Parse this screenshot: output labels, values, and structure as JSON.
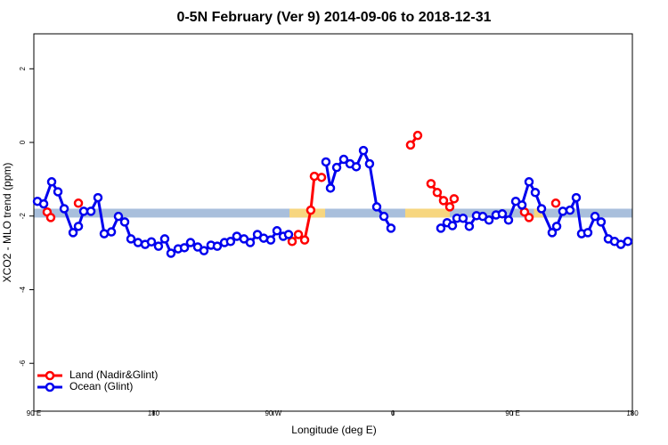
{
  "chart_data": {
    "type": "line",
    "title": "0-5N February (Ver 9)   2014-09-06 to 2018-12-31",
    "x_label": "Longitude (deg E)",
    "y_label": "XCO2 - MLO trend (ppm)",
    "xlim": [
      90,
      540
    ],
    "ylim": [
      -7.3,
      2.95
    ],
    "xticks": [
      {
        "value": 90,
        "label": "90 E"
      },
      180,
      {
        "value": 270,
        "label": "90 W"
      },
      {
        "value": 360,
        "label": "0"
      },
      {
        "value": 450,
        "label": "90 E"
      },
      {
        "value": 540,
        "label": "180"
      }
    ],
    "yticks": [
      -6,
      -4,
      -2,
      0,
      2
    ],
    "legend": "bottom-left",
    "background_band": {
      "ylim": [
        -2.04,
        -1.8
      ],
      "color": "#a9bfdc",
      "segments": [
        {
          "start": 282.2,
          "end": 309,
          "color": "#f7d67f"
        },
        {
          "start": 369.2,
          "end": 402.7,
          "color": "#f7d67f"
        },
        {
          "start": 466,
          "end": 474,
          "color": "#f7d67f"
        }
      ]
    },
    "series": [
      {
        "name": "Land (Nadir&Glint)",
        "color": "#ff0000",
        "x": [
          100.0,
          102.7,
          null,
          123.5,
          null,
          284.2,
          288.9,
          293.6,
          298.2,
          300.9,
          306.3,
          null,
          373.2,
          378.6,
          null,
          388.6,
          393.3,
          398.0,
          402.7,
          406.0,
          null,
          458.9,
          462.3,
          null,
          482.4
        ],
        "values": [
          -1.89,
          -2.04,
          null,
          -1.65,
          null,
          -2.69,
          -2.5,
          -2.65,
          -1.84,
          -0.92,
          -0.95,
          null,
          -0.07,
          0.19,
          null,
          -1.12,
          -1.36,
          -1.58,
          -1.75,
          -1.53,
          null,
          -1.89,
          -2.04,
          null,
          -1.65
        ]
      },
      {
        "name": "Ocean (Glint)",
        "color": "#0000ee",
        "x": [
          92.7,
          97.4,
          103.4,
          108.1,
          112.8,
          119.5,
          123.5,
          127.5,
          132.9,
          138.2,
          142.9,
          148.3,
          153.6,
          158.3,
          163.0,
          168.3,
          173.7,
          178.4,
          183.7,
          188.4,
          193.1,
          198.5,
          203.2,
          207.8,
          213.2,
          217.9,
          223.2,
          227.9,
          233.3,
          237.9,
          242.6,
          248.0,
          252.7,
          258.1,
          262.8,
          268.1,
          272.8,
          277.5,
          281.5,
          null,
          309.6,
          313.0,
          317.7,
          323.0,
          327.7,
          332.4,
          337.8,
          342.4,
          347.8,
          353.2,
          358.5,
          null,
          396.0,
          400.7,
          404.7,
          408.1,
          412.7,
          417.4,
          422.8,
          427.5,
          432.2,
          437.5,
          442.2,
          446.9,
          452.3,
          457.0,
          462.3,
          467.0,
          471.7,
          479.7,
          483.1,
          487.7,
          493.1,
          497.8,
          501.8,
          506.5,
          511.9,
          516.5,
          521.9,
          526.6,
          531.3,
          536.6
        ],
        "values": [
          -1.6,
          -1.67,
          -1.07,
          -1.34,
          -1.8,
          -2.45,
          -2.28,
          -1.87,
          -1.87,
          -1.5,
          -2.48,
          -2.43,
          -2.01,
          -2.16,
          -2.62,
          -2.72,
          -2.77,
          -2.7,
          -2.82,
          -2.62,
          -3.01,
          -2.89,
          -2.86,
          -2.72,
          -2.84,
          -2.94,
          -2.79,
          -2.82,
          -2.72,
          -2.69,
          -2.55,
          -2.62,
          -2.72,
          -2.5,
          -2.6,
          -2.65,
          -2.4,
          -2.55,
          -2.5,
          null,
          -0.53,
          -1.24,
          -0.68,
          -0.46,
          -0.58,
          -0.66,
          -0.22,
          -0.58,
          -1.75,
          -2.01,
          -2.33,
          null,
          -2.33,
          -2.18,
          -2.26,
          -2.06,
          -2.06,
          -2.28,
          -1.99,
          -2.01,
          -2.11,
          -1.97,
          -1.94,
          -2.11,
          -1.6,
          -1.7,
          -1.07,
          -1.36,
          -1.8,
          -2.45,
          -2.28,
          -1.87,
          -1.84,
          -1.5,
          -2.48,
          -2.45,
          -2.01,
          -2.16,
          -2.62,
          -2.69,
          -2.77,
          -2.69
        ]
      }
    ]
  }
}
